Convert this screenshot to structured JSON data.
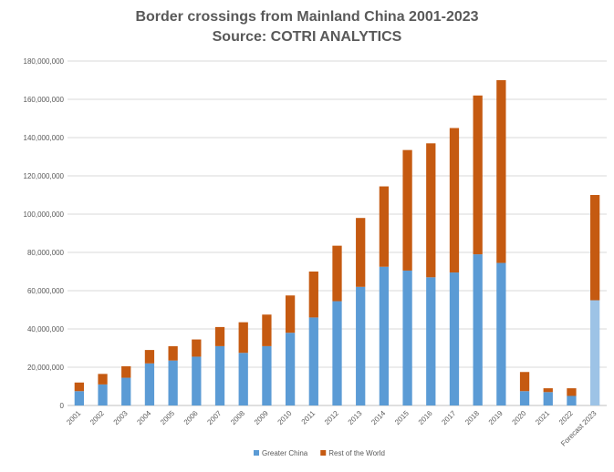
{
  "chart_data": {
    "type": "bar",
    "stacked": true,
    "title": "Border crossings from Mainland China 2001-2023",
    "subtitle": "Source: COTRI ANALYTICS",
    "xlabel": "",
    "ylabel": "",
    "ylim": [
      0,
      180000000
    ],
    "ytick_step": 20000000,
    "grid": true,
    "legend_position": "bottom",
    "categories": [
      "2001",
      "2002",
      "2003",
      "2004",
      "2005",
      "2006",
      "2007",
      "2008",
      "2009",
      "2010",
      "2011",
      "2012",
      "2013",
      "2014",
      "2015",
      "2016",
      "2017",
      "2018",
      "2019",
      "2020",
      "2021",
      "2022",
      "Forecast 2023"
    ],
    "series": [
      {
        "name": "Greater China",
        "color": "#5B9BD5",
        "highlight_color": "#9DC3E6",
        "values": [
          7500000,
          11000000,
          14500000,
          22000000,
          23500000,
          25500000,
          31000000,
          27500000,
          31000000,
          38000000,
          46000000,
          54500000,
          62000000,
          72500000,
          70500000,
          67000000,
          69500000,
          79000000,
          74500000,
          7500000,
          7000000,
          5000000,
          55000000
        ]
      },
      {
        "name": "Rest of the World",
        "color": "#C55A11",
        "values": [
          4500000,
          5500000,
          6000000,
          7000000,
          7500000,
          9000000,
          10000000,
          16000000,
          16500000,
          19500000,
          24000000,
          29000000,
          36000000,
          42000000,
          63000000,
          70000000,
          75500000,
          83000000,
          95500000,
          10000000,
          2000000,
          4000000,
          55000000
        ]
      }
    ]
  }
}
